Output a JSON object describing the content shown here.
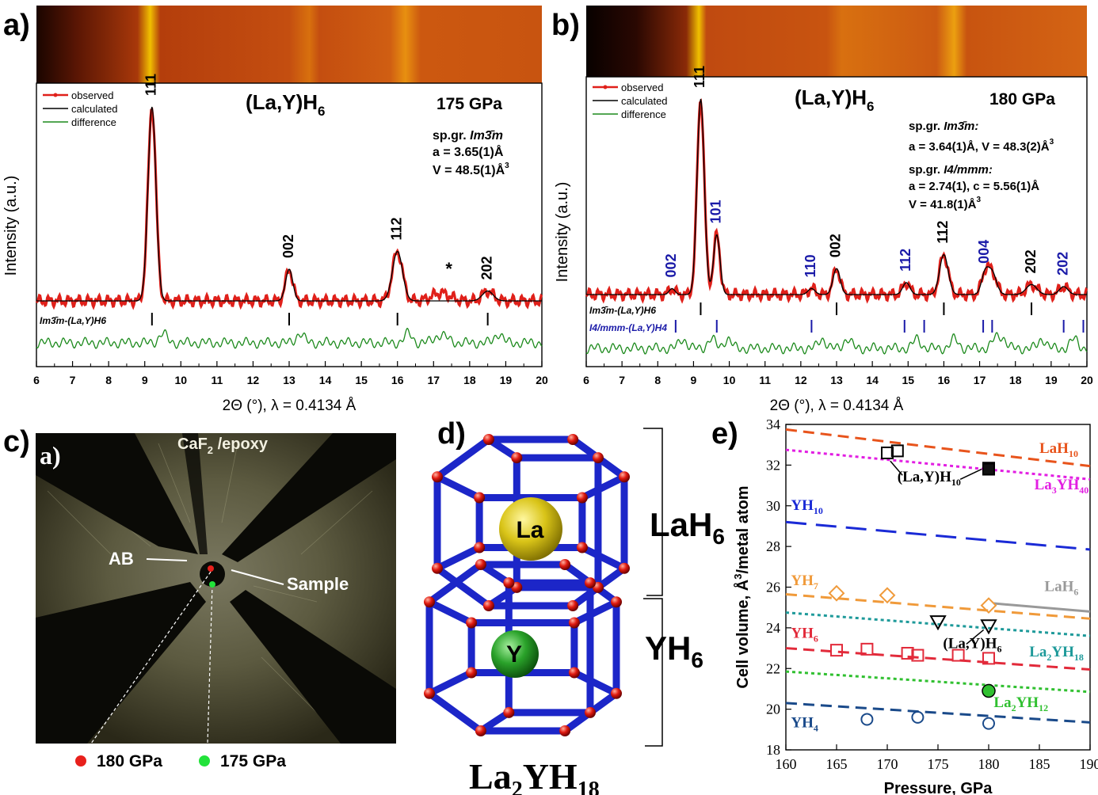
{
  "panel_labels": {
    "a": "a)",
    "b": "b)",
    "c": "c)",
    "d": "d)",
    "e": "e)"
  },
  "shared_xlabel": "2Θ (°), λ = 0.4134 Å",
  "panel_c": {
    "inset_label": "a)",
    "epoxy_label": "CaF",
    "epoxy_sub": "2",
    "epoxy_rest": " /epoxy",
    "ab_label": "AB",
    "sample_label": "Sample",
    "legend": [
      {
        "label": "180 GPa",
        "color": "#e8201c"
      },
      {
        "label": "175 GPa",
        "color": "#22e23a"
      }
    ]
  },
  "panel_d": {
    "top_phase": "LaH",
    "top_sub": "6",
    "bottom_phase": "YH",
    "bottom_sub": "6",
    "atom_top": "La",
    "atom_bottom": "Y",
    "formula_a": "La",
    "formula_sub1": "2",
    "formula_b": "YH",
    "formula_sub2": "18"
  },
  "chart_data": [
    {
      "id": "a",
      "type": "line",
      "title": "(La,Y)H",
      "title_sub": "6",
      "pressure": "175 GPa",
      "annotations": [
        "sp.gr. Im3̄m",
        "a = 3.65(1)Å",
        "V = 48.5(1)Å3"
      ],
      "ylabel": "Intensity (a.u.)",
      "xlim": [
        6,
        20
      ],
      "xticks": [
        6,
        7,
        8,
        9,
        10,
        11,
        12,
        13,
        14,
        15,
        16,
        17,
        18,
        19,
        20
      ],
      "legend": [
        "observed",
        "calculated",
        "difference"
      ],
      "series_colors": {
        "observed": "#e0201a",
        "calculated": "#000000",
        "difference": "#1c8a1c"
      },
      "peaks": [
        {
          "x": 9.2,
          "h": 0.98,
          "w": 0.11,
          "label": "111"
        },
        {
          "x": 13.0,
          "h": 0.16,
          "w": 0.1,
          "label": "002"
        },
        {
          "x": 16.0,
          "h": 0.25,
          "w": 0.14,
          "label": "112"
        },
        {
          "x": 18.5,
          "h": 0.05,
          "w": 0.15,
          "label": "202"
        }
      ],
      "star": {
        "x": 17.2,
        "label": "*"
      },
      "phases": [
        {
          "name": "Im3̄m-(La,Y)H6",
          "color": "#000000",
          "ticks": [
            9.2,
            13.0,
            16.0,
            18.5
          ]
        }
      ]
    },
    {
      "id": "b",
      "type": "line",
      "title": "(La,Y)H",
      "title_sub": "6",
      "pressure": "180 GPa",
      "annotations": [
        "sp.gr. Im3̄m:",
        "a = 3.64(1)Å, V = 48.3(2)Å3",
        "sp.gr. I4/mmm:",
        "a = 2.74(1), c = 5.56(1)Å",
        "V = 41.8(1)Å3"
      ],
      "ylabel": "Intensity (a.u.)",
      "xlim": [
        6,
        20
      ],
      "xticks": [
        6,
        7,
        8,
        9,
        10,
        11,
        12,
        13,
        14,
        15,
        16,
        17,
        18,
        19,
        20
      ],
      "legend": [
        "observed",
        "calculated",
        "difference"
      ],
      "series_colors": {
        "observed": "#e0201a",
        "calculated": "#000000",
        "difference": "#1c8a1c"
      },
      "peaks": [
        {
          "x": 8.4,
          "h": 0.03,
          "w": 0.08,
          "label": "002",
          "color": "#1a1aa8"
        },
        {
          "x": 9.2,
          "h": 0.98,
          "w": 0.1,
          "label": "111",
          "color": "#000000"
        },
        {
          "x": 9.65,
          "h": 0.3,
          "w": 0.09,
          "label": "101",
          "color": "#1a1aa8"
        },
        {
          "x": 12.3,
          "h": 0.03,
          "w": 0.1,
          "label": "110",
          "color": "#1a1aa8"
        },
        {
          "x": 13.0,
          "h": 0.13,
          "w": 0.1,
          "label": "002",
          "color": "#000000"
        },
        {
          "x": 14.95,
          "h": 0.06,
          "w": 0.1,
          "label": "112",
          "color": "#1a1aa8"
        },
        {
          "x": 16.0,
          "h": 0.2,
          "w": 0.12,
          "label": "112",
          "color": "#000000"
        },
        {
          "x": 17.15,
          "h": 0.1,
          "w": 0.1,
          "label": "004",
          "color": "#1a1aa8"
        },
        {
          "x": 17.35,
          "h": 0.11,
          "w": 0.12,
          "label": "",
          "color": "#000000"
        },
        {
          "x": 18.45,
          "h": 0.05,
          "w": 0.15,
          "label": "202",
          "color": "#000000"
        },
        {
          "x": 19.35,
          "h": 0.04,
          "w": 0.12,
          "label": "202",
          "color": "#1a1aa8"
        }
      ],
      "phases": [
        {
          "name": "Im3̄m-(La,Y)H6",
          "color": "#000000",
          "ticks": [
            9.2,
            13.0,
            16.0,
            18.45
          ]
        },
        {
          "name": "I4/mmm-(La,Y)H4",
          "color": "#1a1aa8",
          "ticks": [
            8.5,
            9.65,
            12.3,
            14.9,
            15.45,
            17.1,
            17.35,
            19.35,
            19.9
          ]
        }
      ]
    },
    {
      "id": "e",
      "type": "scatter",
      "xlabel": "Pressure, GPa",
      "ylabel": "Cell volume, Å3/metal atom",
      "xlim": [
        160,
        190
      ],
      "ylim": [
        18,
        34
      ],
      "xticks": [
        160,
        165,
        170,
        175,
        180,
        185,
        190
      ],
      "yticks": [
        18,
        20,
        22,
        24,
        26,
        28,
        30,
        32,
        34
      ],
      "lines": [
        {
          "name": "LaH10",
          "y0": 33.75,
          "y1": 31.95,
          "color": "#e8541c",
          "dash": "14,8",
          "label_x": 185,
          "label_y": 32.6
        },
        {
          "name": "La3YH40",
          "y0": 32.75,
          "y1": 31.3,
          "color": "#e21ee2",
          "dash": "4,4",
          "label_x": 184.5,
          "label_y": 30.8
        },
        {
          "name": "YH10",
          "y0": 29.2,
          "y1": 27.85,
          "color": "#1a2ad6",
          "dash": "26,12",
          "label_x": 160.5,
          "label_y": 29.8
        },
        {
          "name": "YH7",
          "y0": 25.65,
          "y1": 24.45,
          "color": "#f09a3a",
          "dash": "14,8",
          "label_x": 160.5,
          "label_y": 26.1
        },
        {
          "name": "La2YH18",
          "y0": 24.75,
          "y1": 23.6,
          "color": "#1e9a9a",
          "dash": "4,4",
          "label_x": 184,
          "label_y": 22.6
        },
        {
          "name": "YH6",
          "y0": 23.0,
          "y1": 21.95,
          "color": "#e22a3a",
          "dash": "14,8",
          "label_x": 160.5,
          "label_y": 23.5
        },
        {
          "name": "La2YH12",
          "y0": 21.85,
          "y1": 20.85,
          "color": "#30c030",
          "dash": "4,4",
          "label_x": 180.5,
          "label_y": 20.1
        },
        {
          "name": "YH4",
          "y0": 20.3,
          "y1": 19.35,
          "color": "#1a4a8a",
          "dash": "14,8",
          "label_x": 160.5,
          "label_y": 19.1
        },
        {
          "name": "LaH6",
          "x0": 180.5,
          "x1": 190,
          "y0": 25.2,
          "y1": 24.8,
          "color": "#999999",
          "dash": "",
          "label_x": 185.5,
          "label_y": 25.8
        }
      ],
      "points": [
        {
          "group": "(La,Y)H10",
          "marker": "square-open",
          "color": "#000000",
          "pts": [
            [
              170,
              32.6
            ],
            [
              171,
              32.7
            ],
            [
              180,
              31.85
            ]
          ]
        },
        {
          "group": "(La,Y)H10 filled",
          "marker": "square-filled",
          "color": "#111111",
          "pts": [
            [
              180,
              31.8
            ]
          ]
        },
        {
          "group": "YH7",
          "marker": "diamond",
          "color": "#f09a3a",
          "pts": [
            [
              165,
              25.7
            ],
            [
              170,
              25.6
            ],
            [
              180,
              25.1
            ]
          ]
        },
        {
          "group": "(La,Y)H6",
          "marker": "triangle-down",
          "color": "#000000",
          "pts": [
            [
              175,
              24.3
            ],
            [
              180,
              24.1
            ]
          ]
        },
        {
          "group": "YH6",
          "marker": "square-open",
          "color": "#e22a3a",
          "pts": [
            [
              165,
              22.9
            ],
            [
              168,
              22.95
            ],
            [
              172,
              22.75
            ],
            [
              173,
              22.65
            ],
            [
              177,
              22.65
            ],
            [
              180,
              22.5
            ]
          ]
        },
        {
          "group": "La2YH12",
          "marker": "circle-filled",
          "color": "#30c030",
          "pts": [
            [
              180,
              20.9
            ]
          ]
        },
        {
          "group": "YH4",
          "marker": "circle-open",
          "color": "#1a4a8a",
          "pts": [
            [
              168,
              19.5
            ],
            [
              173,
              19.6
            ],
            [
              180,
              19.3
            ]
          ]
        }
      ],
      "point_labels": [
        {
          "text": "(La,Y)H",
          "sub": "10",
          "x": 171,
          "y": 31.2
        },
        {
          "text": "(La,Y)H",
          "sub": "6",
          "x": 175.5,
          "y": 23.0
        }
      ]
    }
  ]
}
